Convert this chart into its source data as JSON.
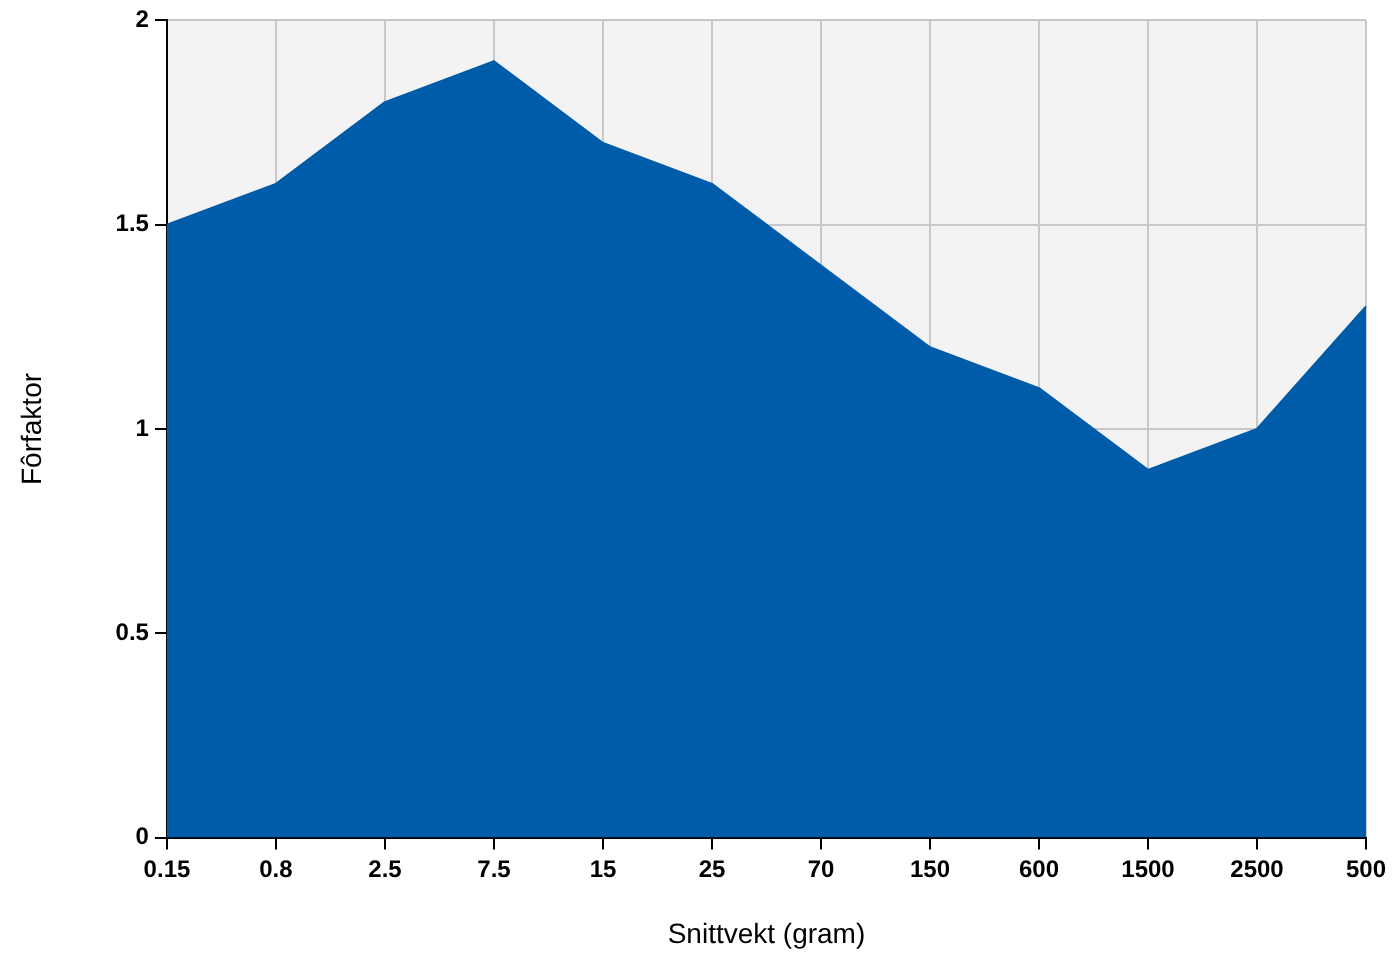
{
  "chart_data": {
    "type": "area",
    "xlabel": "Snittvekt (gram)",
    "ylabel": "Fôrfaktor",
    "categories": [
      "0.15",
      "0.8",
      "2.5",
      "7.5",
      "15",
      "25",
      "70",
      "150",
      "600",
      "1500",
      "2500",
      "500"
    ],
    "series": [
      {
        "color": "#005ca9",
        "values": [
          1.5,
          1.6,
          1.8,
          1.9,
          1.7,
          1.6,
          1.4,
          1.2,
          1.1,
          0.9,
          1.0,
          1.3
        ]
      }
    ],
    "ylim": [
      0,
      2
    ],
    "yticks": [
      0,
      0.5,
      1,
      1.5,
      2
    ],
    "grid": true,
    "legend": false
  }
}
